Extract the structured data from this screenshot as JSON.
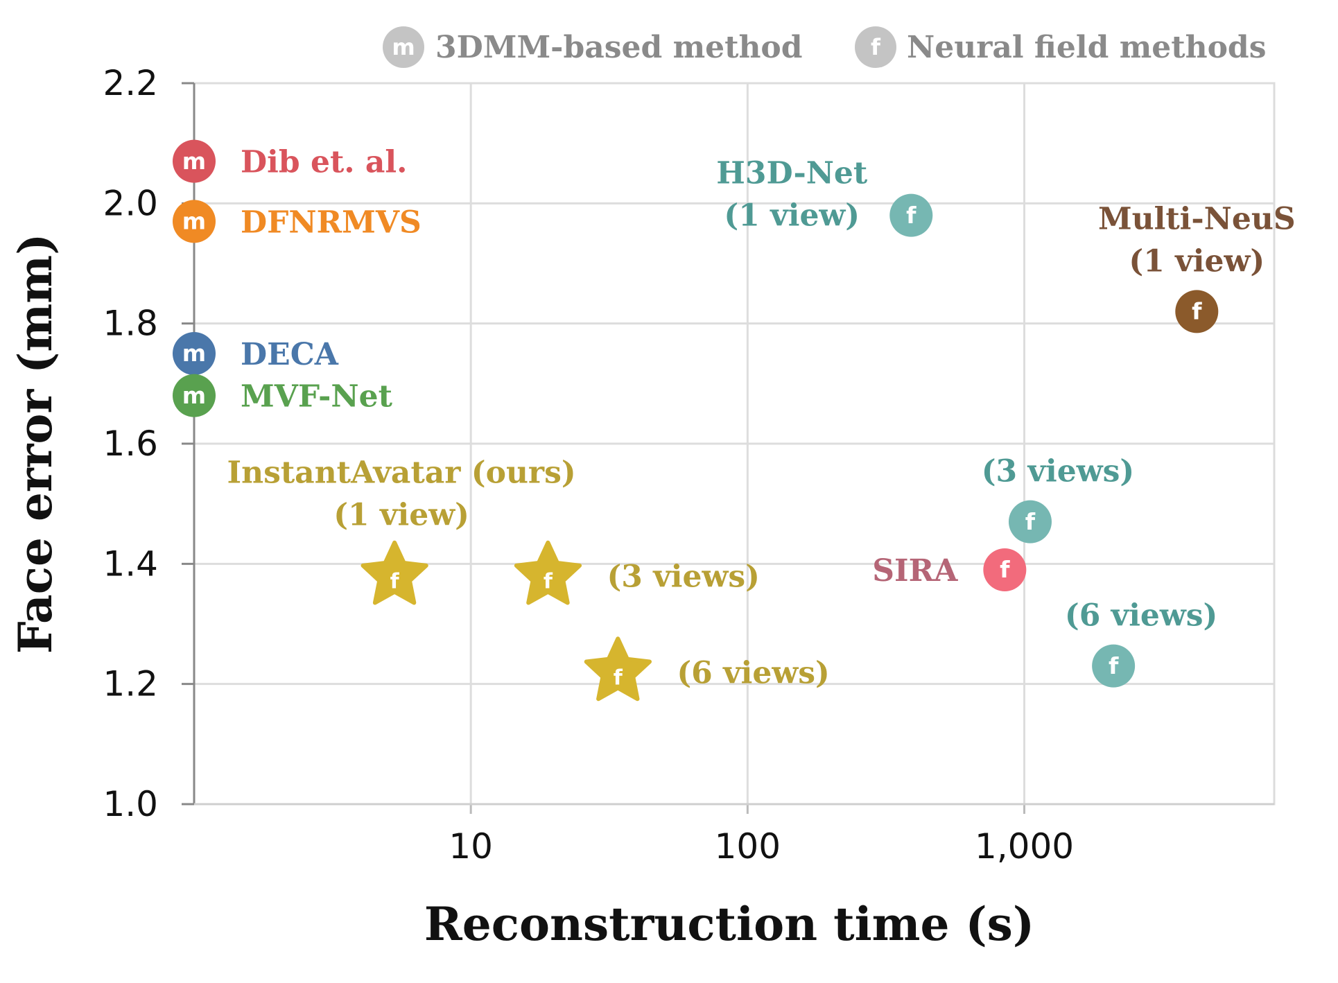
{
  "chart_data": {
    "type": "scatter",
    "xscale": "log",
    "xlabel": "Reconstruction time (s)",
    "ylabel": "Face error (mm)",
    "xlim": [
      1,
      8000
    ],
    "ylim": [
      1.0,
      2.2
    ],
    "grid": true,
    "x_ticks": [
      {
        "value": 10,
        "label": "10"
      },
      {
        "value": 100,
        "label": "100"
      },
      {
        "value": 1000,
        "label": "1,000"
      }
    ],
    "y_ticks": [
      {
        "value": 1.0,
        "label": "1.0"
      },
      {
        "value": 1.2,
        "label": "1.2"
      },
      {
        "value": 1.4,
        "label": "1.4"
      },
      {
        "value": 1.6,
        "label": "1.6"
      },
      {
        "value": 1.8,
        "label": "1.8"
      },
      {
        "value": 2.0,
        "label": "2.0"
      },
      {
        "value": 2.2,
        "label": "2.2"
      }
    ],
    "legend": {
      "placement": "top",
      "items": [
        {
          "name": "3DMM-based method",
          "marker": "circle",
          "letter": "m",
          "color": "#c4c4c4"
        },
        {
          "name": "Neural field methods",
          "marker": "circle",
          "letter": "f",
          "color": "#c4c4c4"
        }
      ]
    },
    "series": [
      {
        "name": "Dib et. al.",
        "category": "3DMM-based method",
        "marker": "circle",
        "letter": "m",
        "color": "#d9545c",
        "points": [
          {
            "x": 1,
            "y": 2.07,
            "label": "Dib et. al.",
            "label_pos": "right"
          }
        ]
      },
      {
        "name": "DFNRMVS",
        "category": "3DMM-based method",
        "marker": "circle",
        "letter": "m",
        "color": "#f08a24",
        "points": [
          {
            "x": 1,
            "y": 1.97,
            "label": "DFNRMVS",
            "label_pos": "right"
          }
        ]
      },
      {
        "name": "DECA",
        "category": "3DMM-based method",
        "marker": "circle",
        "letter": "m",
        "color": "#4a77aa",
        "points": [
          {
            "x": 1,
            "y": 1.75,
            "label": "DECA",
            "label_pos": "right"
          }
        ]
      },
      {
        "name": "MVF-Net",
        "category": "3DMM-based method",
        "marker": "circle",
        "letter": "m",
        "color": "#59a14f",
        "points": [
          {
            "x": 1,
            "y": 1.68,
            "label": "MVF-Net",
            "label_pos": "right"
          }
        ]
      },
      {
        "name": "H3D-Net",
        "category": "Neural field methods",
        "marker": "circle",
        "letter": "f",
        "color": "#76b7b2",
        "label_color": "#4f9a94",
        "points": [
          {
            "x": 390,
            "y": 1.98,
            "label": [
              "H3D-Net",
              "(1 view)"
            ],
            "label_pos": "left"
          },
          {
            "x": 1050,
            "y": 1.47,
            "label": [
              "(3 views)"
            ],
            "label_pos": "above"
          },
          {
            "x": 2100,
            "y": 1.23,
            "label": [
              "(6 views)"
            ],
            "label_pos": "above"
          }
        ]
      },
      {
        "name": "Multi-NeuS",
        "category": "Neural field methods",
        "marker": "circle",
        "letter": "f",
        "color": "#8b5a2b",
        "label_color": "#7a5238",
        "points": [
          {
            "x": 4200,
            "y": 1.82,
            "label": [
              "Multi-NeuS",
              "(1 view)"
            ],
            "label_pos": "above"
          }
        ]
      },
      {
        "name": "SIRA",
        "category": "Neural field methods",
        "marker": "circle",
        "letter": "f",
        "color": "#f26b7c",
        "label_color": "#b56576",
        "points": [
          {
            "x": 850,
            "y": 1.39,
            "label": [
              "SIRA"
            ],
            "label_pos": "left"
          }
        ]
      },
      {
        "name": "InstantAvatar (ours)",
        "category": "Neural field methods",
        "marker": "star",
        "letter": "f",
        "color": "#d6b52e",
        "label_color": "#b8a035",
        "points": [
          {
            "x": 5.3,
            "y": 1.38,
            "label": [
              "InstantAvatar (ours)",
              "(1 view)"
            ],
            "label_pos": "above"
          },
          {
            "x": 19,
            "y": 1.38,
            "label": [
              "(3 views)"
            ],
            "label_pos": "right"
          },
          {
            "x": 34,
            "y": 1.22,
            "label": [
              "(6 views)"
            ],
            "label_pos": "right"
          }
        ]
      }
    ]
  }
}
